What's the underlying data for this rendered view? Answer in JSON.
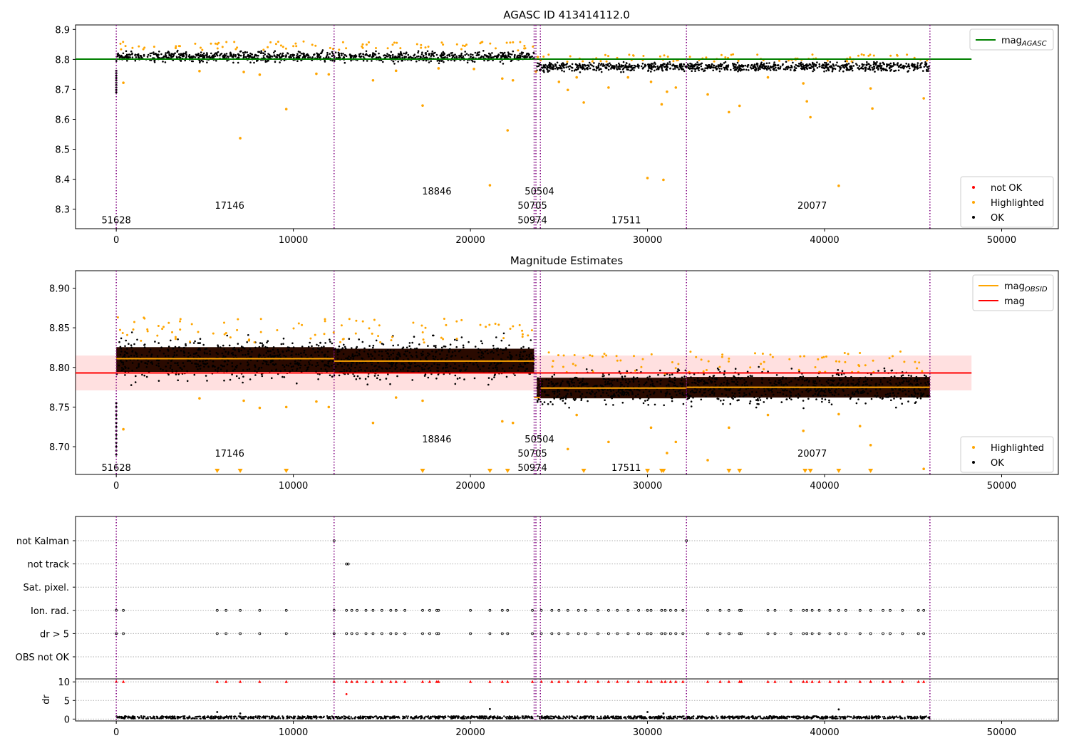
{
  "chart_data": [
    {
      "type": "scatter",
      "title": "AGASC ID 413414112.0",
      "xlim": [
        -2300,
        53200
      ],
      "ylim": [
        8.235,
        8.915
      ],
      "xticks": [
        0,
        10000,
        20000,
        30000,
        40000,
        50000
      ],
      "yticks": [
        8.3,
        8.4,
        8.5,
        8.6,
        8.7,
        8.8,
        8.9
      ],
      "vlines": [
        0,
        12300,
        23600,
        23700,
        23950,
        32200,
        45950
      ],
      "agasc_mag": 8.801,
      "agasc_line_x": [
        -2300,
        48300
      ],
      "segments": [
        {
          "start": 0,
          "end": 12300,
          "mean": 8.81,
          "spread": 0.012
        },
        {
          "start": 12300,
          "end": 23600,
          "mean": 8.808,
          "spread": 0.012
        },
        {
          "start": 23750,
          "end": 32200,
          "mean": 8.774,
          "spread": 0.01
        },
        {
          "start": 32200,
          "end": 45950,
          "mean": 8.775,
          "spread": 0.01
        }
      ],
      "highlighted_points": [
        [
          400,
          8.722
        ],
        [
          4700,
          8.761
        ],
        [
          7000,
          8.537
        ],
        [
          7200,
          8.758
        ],
        [
          8100,
          8.749
        ],
        [
          9600,
          8.634
        ],
        [
          11300,
          8.752
        ],
        [
          12000,
          8.75
        ],
        [
          14500,
          8.73
        ],
        [
          15800,
          8.762
        ],
        [
          17300,
          8.646
        ],
        [
          18200,
          8.77
        ],
        [
          20200,
          8.768
        ],
        [
          21100,
          8.38
        ],
        [
          21800,
          8.736
        ],
        [
          22100,
          8.563
        ],
        [
          22400,
          8.73
        ],
        [
          23700,
          8.76
        ],
        [
          25000,
          8.725
        ],
        [
          25500,
          8.698
        ],
        [
          26000,
          8.74
        ],
        [
          26400,
          8.656
        ],
        [
          27800,
          8.706
        ],
        [
          28900,
          8.74
        ],
        [
          30000,
          8.404
        ],
        [
          30200,
          8.725
        ],
        [
          30800,
          8.65
        ],
        [
          30900,
          8.398
        ],
        [
          31100,
          8.692
        ],
        [
          31600,
          8.706
        ],
        [
          33400,
          8.683
        ],
        [
          34600,
          8.624
        ],
        [
          35200,
          8.645
        ],
        [
          36800,
          8.74
        ],
        [
          38800,
          8.72
        ],
        [
          39000,
          8.66
        ],
        [
          39200,
          8.607
        ],
        [
          40800,
          8.378
        ],
        [
          42600,
          8.703
        ],
        [
          42700,
          8.636
        ],
        [
          45600,
          8.67
        ]
      ],
      "obs_labels": [
        {
          "text": "51628",
          "x": 0,
          "y": 8.265
        },
        {
          "text": "17146",
          "x": 6400,
          "y": 8.313
        },
        {
          "text": "18846",
          "x": 18100,
          "y": 8.361
        },
        {
          "text": "50504",
          "x": 23900,
          "y": 8.361
        },
        {
          "text": "50705",
          "x": 23500,
          "y": 8.313
        },
        {
          "text": "50974",
          "x": 23500,
          "y": 8.265
        },
        {
          "text": "17511",
          "x": 28800,
          "y": 8.265
        },
        {
          "text": "20077",
          "x": 39300,
          "y": 8.313
        }
      ],
      "legend_top": [
        {
          "label": "mag",
          "sub": "AGASC",
          "color": "#008000"
        }
      ],
      "legend_bottom": [
        {
          "label": "not OK",
          "color": "#ff0000"
        },
        {
          "label": "Highlighted",
          "color": "#ffa500"
        },
        {
          "label": "OK",
          "color": "#000000"
        }
      ]
    },
    {
      "type": "scatter",
      "title": "Magnitude Estimates",
      "xlim": [
        -2300,
        53200
      ],
      "ylim": [
        8.665,
        8.922
      ],
      "xticks": [
        0,
        10000,
        20000,
        30000,
        40000,
        50000
      ],
      "yticks": [
        8.7,
        8.75,
        8.8,
        8.85,
        8.9
      ],
      "ytick_labels": [
        "8.70",
        "8.75",
        "8.80",
        "8.85",
        "8.90"
      ],
      "vlines": [
        0,
        12300,
        23600,
        23700,
        23950,
        32200,
        45950
      ],
      "mag": 8.793,
      "mag_band": [
        8.771,
        8.815
      ],
      "mag_line_x": [
        -2300,
        48300
      ],
      "obsid_mags": [
        {
          "start": 0,
          "end": 12300,
          "value": 8.811
        },
        {
          "start": 12300,
          "end": 23600,
          "value": 8.808
        },
        {
          "start": 23600,
          "end": 23950,
          "value": 8.762
        },
        {
          "start": 23950,
          "end": 32200,
          "value": 8.774
        },
        {
          "start": 32200,
          "end": 45950,
          "value": 8.775
        }
      ],
      "highlighted_points": [
        [
          400,
          8.722
        ],
        [
          4700,
          8.761
        ],
        [
          7200,
          8.758
        ],
        [
          8100,
          8.749
        ],
        [
          9600,
          8.75
        ],
        [
          11300,
          8.757
        ],
        [
          12000,
          8.75
        ],
        [
          14500,
          8.73
        ],
        [
          15800,
          8.762
        ],
        [
          17300,
          8.758
        ],
        [
          21800,
          8.732
        ],
        [
          22400,
          8.73
        ],
        [
          25500,
          8.697
        ],
        [
          26000,
          8.74
        ],
        [
          27800,
          8.706
        ],
        [
          30200,
          8.724
        ],
        [
          31100,
          8.692
        ],
        [
          31600,
          8.706
        ],
        [
          33400,
          8.683
        ],
        [
          34600,
          8.724
        ],
        [
          36800,
          8.74
        ],
        [
          38800,
          8.72
        ],
        [
          40800,
          8.741
        ],
        [
          42000,
          8.726
        ],
        [
          42600,
          8.702
        ],
        [
          45600,
          8.672
        ]
      ],
      "below_range_x": [
        5700,
        7000,
        9600,
        17300,
        21100,
        22100,
        26400,
        30000,
        30800,
        30900,
        34600,
        35200,
        38900,
        39200,
        40800,
        42600
      ],
      "obs_labels": [
        {
          "text": "51628",
          "x": 0,
          "y": 8.674
        },
        {
          "text": "17146",
          "x": 6400,
          "y": 8.692
        },
        {
          "text": "18846",
          "x": 18100,
          "y": 8.71
        },
        {
          "text": "50504",
          "x": 23900,
          "y": 8.71
        },
        {
          "text": "50705",
          "x": 23500,
          "y": 8.692
        },
        {
          "text": "50974",
          "x": 23500,
          "y": 8.674
        },
        {
          "text": "17511",
          "x": 28800,
          "y": 8.674
        },
        {
          "text": "20077",
          "x": 39300,
          "y": 8.692
        }
      ],
      "legend_top": [
        {
          "label": "mag",
          "sub": "OBSID",
          "color": "#ffa500"
        },
        {
          "label": "mag",
          "sub": "",
          "color": "#ff0000"
        }
      ],
      "legend_bottom": [
        {
          "label": "Highlighted",
          "color": "#ffa500"
        },
        {
          "label": "OK",
          "color": "#000000"
        }
      ]
    },
    {
      "type": "scatter",
      "title": "",
      "xlim": [
        -2300,
        53200
      ],
      "categories": [
        "not Kalman",
        "not track",
        "Sat. pixel.",
        "Ion. rad.",
        "dr > 5",
        "OBS not OK"
      ],
      "vlines": [
        0,
        12300,
        23600,
        23700,
        23950,
        32200,
        45950
      ],
      "flag_points": [
        {
          "category": "not track",
          "x": [
            13000,
            13100
          ]
        },
        {
          "category": "not Kalman",
          "x": [
            12300,
            32200
          ]
        },
        {
          "category": "Ion. rad.",
          "x": [
            0,
            400,
            5700,
            6200,
            7000,
            8100,
            9600,
            12300,
            13000,
            13300,
            13600,
            14100,
            14500,
            15000,
            15500,
            15800,
            16300,
            17300,
            17700,
            18100,
            18200,
            20000,
            21100,
            21800,
            22100,
            23500,
            24000,
            24600,
            25000,
            25500,
            26100,
            26500,
            27200,
            27800,
            28300,
            28900,
            29500,
            30000,
            30200,
            30800,
            31000,
            31300,
            31600,
            32000,
            33400,
            34100,
            34600,
            35200,
            35300,
            36800,
            37200,
            38100,
            38800,
            39000,
            39300,
            39700,
            40300,
            40800,
            41200,
            42000,
            42600,
            43300,
            43700,
            44400,
            45300,
            45600
          ]
        },
        {
          "category": "dr > 5",
          "x": [
            0,
            400,
            5700,
            6200,
            7000,
            8100,
            9600,
            12300,
            13000,
            13300,
            13600,
            14100,
            14500,
            15000,
            15500,
            15800,
            16300,
            17300,
            17700,
            18100,
            18200,
            20000,
            21100,
            21800,
            22100,
            23500,
            24000,
            24600,
            25000,
            25500,
            26100,
            26500,
            27200,
            27800,
            28300,
            28900,
            29500,
            30000,
            30200,
            30800,
            31000,
            31300,
            31600,
            32000,
            33400,
            34100,
            34600,
            35200,
            35300,
            36800,
            37200,
            38100,
            38800,
            39000,
            39300,
            39700,
            40300,
            40800,
            41200,
            42000,
            42600,
            43300,
            43700,
            44400,
            45300,
            45600
          ]
        }
      ],
      "dr_subplot": {
        "ylabel": "dr",
        "ylim": [
          -0.5,
          10.8
        ],
        "yticks": [
          0,
          5,
          10
        ],
        "red_at": 10,
        "red_extra": [
          [
            13000,
            6.7
          ]
        ],
        "black_extra": [
          [
            5700,
            1.9
          ],
          [
            7000,
            1.5
          ],
          [
            21100,
            2.7
          ],
          [
            30000,
            1.9
          ],
          [
            30900,
            1.5
          ],
          [
            40800,
            2.6
          ]
        ]
      }
    }
  ]
}
